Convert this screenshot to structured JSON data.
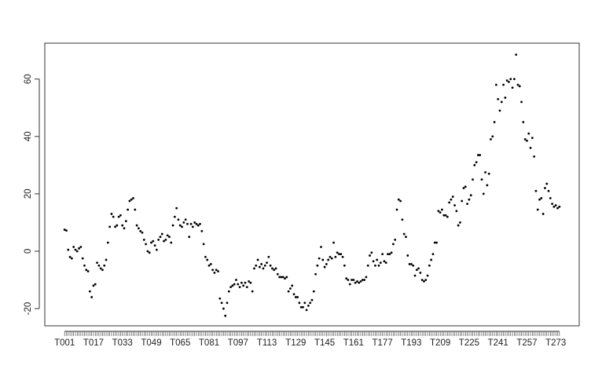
{
  "chart_data": {
    "type": "scatter",
    "categories": [
      "T001",
      null,
      null,
      null,
      null,
      null,
      null,
      null,
      null,
      null,
      null,
      null,
      null,
      null,
      null,
      null,
      "T017",
      null,
      null,
      null,
      null,
      null,
      null,
      null,
      null,
      null,
      null,
      null,
      null,
      null,
      null,
      null,
      "T033",
      null,
      null,
      null,
      null,
      null,
      null,
      null,
      null,
      null,
      null,
      null,
      null,
      null,
      null,
      null,
      "T049",
      null,
      null,
      null,
      null,
      null,
      null,
      null,
      null,
      null,
      null,
      null,
      null,
      null,
      null,
      null,
      "T065",
      null,
      null,
      null,
      null,
      null,
      null,
      null,
      null,
      null,
      null,
      null,
      null,
      null,
      null,
      null,
      "T081",
      null,
      null,
      null,
      null,
      null,
      null,
      null,
      null,
      null,
      null,
      null,
      null,
      null,
      null,
      null,
      "T097",
      null,
      null,
      null,
      null,
      null,
      null,
      null,
      null,
      null,
      null,
      null,
      null,
      null,
      null,
      null,
      "T113",
      null,
      null,
      null,
      null,
      null,
      null,
      null,
      null,
      null,
      null,
      null,
      null,
      null,
      null,
      null,
      "T129",
      null,
      null,
      null,
      null,
      null,
      null,
      null,
      null,
      null,
      null,
      null,
      null,
      null,
      null,
      null,
      "T145",
      null,
      null,
      null,
      null,
      null,
      null,
      null,
      null,
      null,
      null,
      null,
      null,
      null,
      null,
      null,
      "T161",
      null,
      null,
      null,
      null,
      null,
      null,
      null,
      null,
      null,
      null,
      null,
      null,
      null,
      null,
      null,
      "T177",
      null,
      null,
      null,
      null,
      null,
      null,
      null,
      null,
      null,
      null,
      null,
      null,
      null,
      null,
      null,
      "T193",
      null,
      null,
      null,
      null,
      null,
      null,
      null,
      null,
      null,
      null,
      null,
      null,
      null,
      null,
      null,
      "T209",
      null,
      null,
      null,
      null,
      null,
      null,
      null,
      null,
      null,
      null,
      null,
      null,
      null,
      null,
      null,
      "T225",
      null,
      null,
      null,
      null,
      null,
      null,
      null,
      null,
      null,
      null,
      null,
      null,
      null,
      null,
      null,
      "T241",
      null,
      null,
      null,
      null,
      null,
      null,
      null,
      null,
      null,
      null,
      null,
      null,
      null,
      null,
      null,
      "T257",
      null,
      null,
      null,
      null,
      null,
      null,
      null,
      null,
      null,
      null,
      null,
      null,
      null,
      null,
      null,
      "T273",
      null,
      null
    ],
    "values": [
      7.5,
      7.2,
      0.5,
      -2,
      -2.5,
      1.5,
      0.5,
      0,
      1,
      1.5,
      -2.5,
      -5,
      -6.5,
      -7,
      -14,
      -16,
      -12,
      -11.5,
      -4,
      -5,
      -6,
      -6.5,
      -5,
      -3,
      3,
      8.5,
      13,
      12,
      8.5,
      9,
      12,
      12.5,
      9,
      8,
      10.5,
      14.5,
      17.5,
      18,
      18.5,
      14.5,
      9,
      8,
      7,
      6.5,
      4,
      2.5,
      0,
      -0.5,
      3,
      3.5,
      2,
      0.5,
      4,
      5,
      6,
      3.5,
      4,
      5.5,
      5,
      3,
      9,
      12,
      15,
      11,
      9,
      8.5,
      10,
      11,
      9.5,
      5,
      9.5,
      8.5,
      10,
      9.5,
      9,
      9.5,
      7,
      2.5,
      -2,
      -3,
      -5,
      -4.5,
      -6.5,
      -7.5,
      -6.5,
      -7,
      -16.5,
      -18,
      -20,
      -22.5,
      -18,
      -14,
      -12.5,
      -12,
      -11.5,
      -10,
      -11.5,
      -12.5,
      -11,
      -12,
      -11,
      -12.5,
      -10.5,
      -11,
      -14,
      -6,
      -5,
      -3,
      -5.5,
      -4.5,
      -6,
      -5,
      -4,
      -2,
      -5,
      -6,
      -6.5,
      -6,
      -8,
      -9,
      -9,
      -9,
      -9.5,
      -9,
      -14,
      -13,
      -12,
      -15,
      -16,
      -16,
      -18,
      -19.5,
      -19.5,
      -18,
      -20.5,
      -19,
      -18,
      -17,
      -14,
      -8,
      -5,
      -2.5,
      1.5,
      -3,
      -5.5,
      -4.5,
      -3,
      -2,
      -2.5,
      3,
      -2,
      -0.5,
      -1,
      -1,
      -2,
      -5,
      -9.5,
      -10,
      -11.5,
      -10,
      -10,
      -11,
      -10.5,
      -11,
      -10.5,
      -10,
      -10,
      -9,
      -5,
      -1.5,
      -0.5,
      -3.5,
      -5,
      -3,
      -5,
      -4,
      -1,
      -3.5,
      -4,
      -1,
      -1,
      -0.5,
      2.5,
      4,
      14.5,
      18,
      17.5,
      11,
      6,
      5,
      -1.5,
      -4.5,
      -4.5,
      -5,
      -8.5,
      -6.5,
      -6,
      -7.5,
      -10,
      -10.5,
      -10,
      -8.5,
      -5,
      -3,
      -1,
      3,
      3,
      14,
      13.5,
      14.5,
      12.5,
      12.5,
      12,
      17,
      18,
      19,
      16,
      14,
      9,
      10,
      17.5,
      22,
      22.5,
      16.5,
      18,
      19.5,
      25,
      30,
      31,
      33.5,
      33.5,
      25,
      20,
      27.5,
      23,
      27,
      39,
      40,
      45,
      58,
      53,
      49,
      52,
      58,
      53.5,
      59.5,
      59,
      60,
      57,
      60,
      68.5,
      58,
      57.5,
      52,
      45,
      39,
      38.5,
      41,
      36,
      39.5,
      33,
      21,
      14.5,
      18,
      18.5,
      13,
      22,
      23.5,
      21,
      18.5,
      16.5,
      15.5,
      16,
      15,
      15.5
    ],
    "color": "#000000",
    "ylim": [
      -26,
      72.5
    ],
    "yticks": [
      -20,
      0,
      20,
      40,
      60
    ],
    "grid": false
  }
}
